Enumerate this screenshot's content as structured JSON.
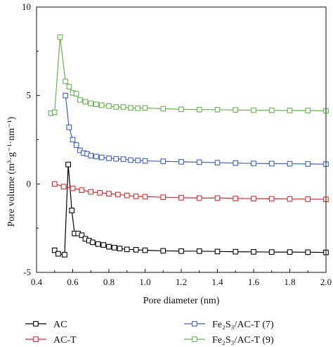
{
  "chart_data": {
    "type": "line",
    "xlabel": "Pore diameter (nm)",
    "ylabel": {
      "text": "Pore volume (m³·g⁻¹·nm⁻¹)"
    },
    "xlim": [
      0.4,
      2.0
    ],
    "ylim": [
      -5,
      10
    ],
    "x_ticks": [
      "0.4",
      "0.6",
      "0.8",
      "1.0",
      "1.2",
      "1.4",
      "1.6",
      "1.8",
      "2.0"
    ],
    "y_ticks": [
      "-5",
      "0",
      "5",
      "10"
    ],
    "grid": false,
    "legend_placement": "bottom, two columns",
    "series": [
      {
        "name": "AC",
        "color": "#000000",
        "x": [
          0.5,
          0.52,
          0.555,
          0.575,
          0.595,
          0.61,
          0.63,
          0.65,
          0.67,
          0.69,
          0.71,
          0.74,
          0.77,
          0.8,
          0.83,
          0.86,
          0.9,
          0.95,
          1.0,
          1.1,
          1.2,
          1.3,
          1.4,
          1.5,
          1.6,
          1.7,
          1.8,
          1.9,
          2.0
        ],
        "y": [
          -3.75,
          -3.95,
          -4.0,
          1.1,
          -1.5,
          -2.8,
          -2.8,
          -2.9,
          -3.1,
          -3.2,
          -3.3,
          -3.4,
          -3.45,
          -3.55,
          -3.6,
          -3.65,
          -3.7,
          -3.72,
          -3.75,
          -3.78,
          -3.8,
          -3.8,
          -3.82,
          -3.83,
          -3.84,
          -3.85,
          -3.85,
          -3.86,
          -3.87
        ]
      },
      {
        "name": "AC-T",
        "color": "#e8262b",
        "x": [
          0.5,
          0.55,
          0.6,
          0.65,
          0.7,
          0.75,
          0.8,
          0.85,
          0.9,
          0.95,
          1.0,
          1.1,
          1.2,
          1.3,
          1.4,
          1.5,
          1.6,
          1.7,
          1.8,
          1.9,
          2.0
        ],
        "y": [
          0.0,
          -0.15,
          -0.25,
          -0.35,
          -0.45,
          -0.5,
          -0.55,
          -0.6,
          -0.65,
          -0.7,
          -0.72,
          -0.75,
          -0.78,
          -0.8,
          -0.8,
          -0.82,
          -0.83,
          -0.84,
          -0.85,
          -0.86,
          -0.87
        ]
      },
      {
        "name": "Fe₂S₃/AC-T (7)",
        "color": "#3a5fcd",
        "x": [
          0.56,
          0.58,
          0.6,
          0.62,
          0.64,
          0.66,
          0.68,
          0.7,
          0.73,
          0.76,
          0.8,
          0.84,
          0.88,
          0.92,
          0.96,
          1.0,
          1.1,
          1.2,
          1.3,
          1.4,
          1.5,
          1.6,
          1.7,
          1.8,
          1.9,
          2.0
        ],
        "y": [
          5.0,
          3.2,
          2.5,
          2.2,
          1.9,
          1.75,
          1.7,
          1.6,
          1.55,
          1.5,
          1.45,
          1.42,
          1.4,
          1.35,
          1.33,
          1.3,
          1.28,
          1.25,
          1.23,
          1.2,
          1.18,
          1.16,
          1.15,
          1.14,
          1.13,
          1.12
        ]
      },
      {
        "name": "Fe₂S₃/AC-T (9)",
        "color": "#62b64a",
        "x": [
          0.48,
          0.5,
          0.53,
          0.56,
          0.58,
          0.6,
          0.62,
          0.64,
          0.67,
          0.7,
          0.73,
          0.76,
          0.8,
          0.84,
          0.88,
          0.92,
          0.96,
          1.0,
          1.1,
          1.2,
          1.3,
          1.4,
          1.5,
          1.6,
          1.7,
          1.8,
          1.9,
          2.0
        ],
        "y": [
          4.0,
          4.05,
          8.3,
          5.8,
          5.5,
          5.15,
          5.1,
          4.75,
          4.65,
          4.55,
          4.5,
          4.45,
          4.4,
          4.35,
          4.35,
          4.3,
          4.28,
          4.3,
          4.25,
          4.22,
          4.2,
          4.2,
          4.18,
          4.17,
          4.16,
          4.15,
          4.15,
          4.13
        ]
      }
    ],
    "legend": {
      "entries": [
        {
          "label": "AC",
          "color": "#000000"
        },
        {
          "label": "AC-T",
          "color": "#e8262b"
        },
        {
          "label": "Fe₂S₃/AC-T (7)",
          "color": "#3a5fcd"
        },
        {
          "label": "Fe₂S₃/AC-T (9)",
          "color": "#62b64a"
        }
      ]
    }
  }
}
